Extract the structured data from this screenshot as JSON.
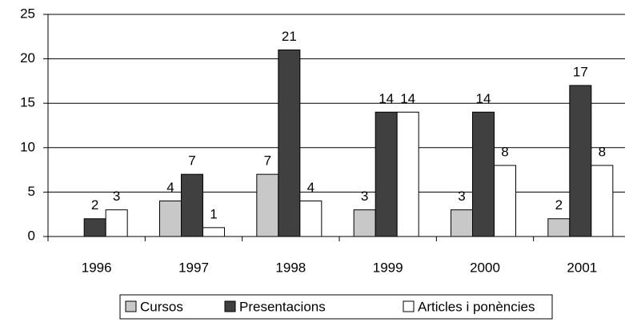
{
  "chart_data": {
    "type": "bar",
    "categories": [
      "1996",
      "1997",
      "1998",
      "1999",
      "2000",
      "2001"
    ],
    "series": [
      {
        "name": "Cursos",
        "color": "#c8c8c8",
        "values": [
          null,
          4,
          7,
          3,
          3,
          2
        ]
      },
      {
        "name": "Presentacions",
        "color": "#404040",
        "values": [
          2,
          7,
          21,
          14,
          14,
          17
        ]
      },
      {
        "name": "Articles i ponències",
        "color": "#ffffff",
        "values": [
          3,
          1,
          4,
          14,
          8,
          8
        ]
      }
    ],
    "ylim": [
      0,
      25
    ],
    "yticks": [
      0,
      5,
      10,
      15,
      20,
      25
    ],
    "grid": true,
    "legend": "bottom"
  }
}
